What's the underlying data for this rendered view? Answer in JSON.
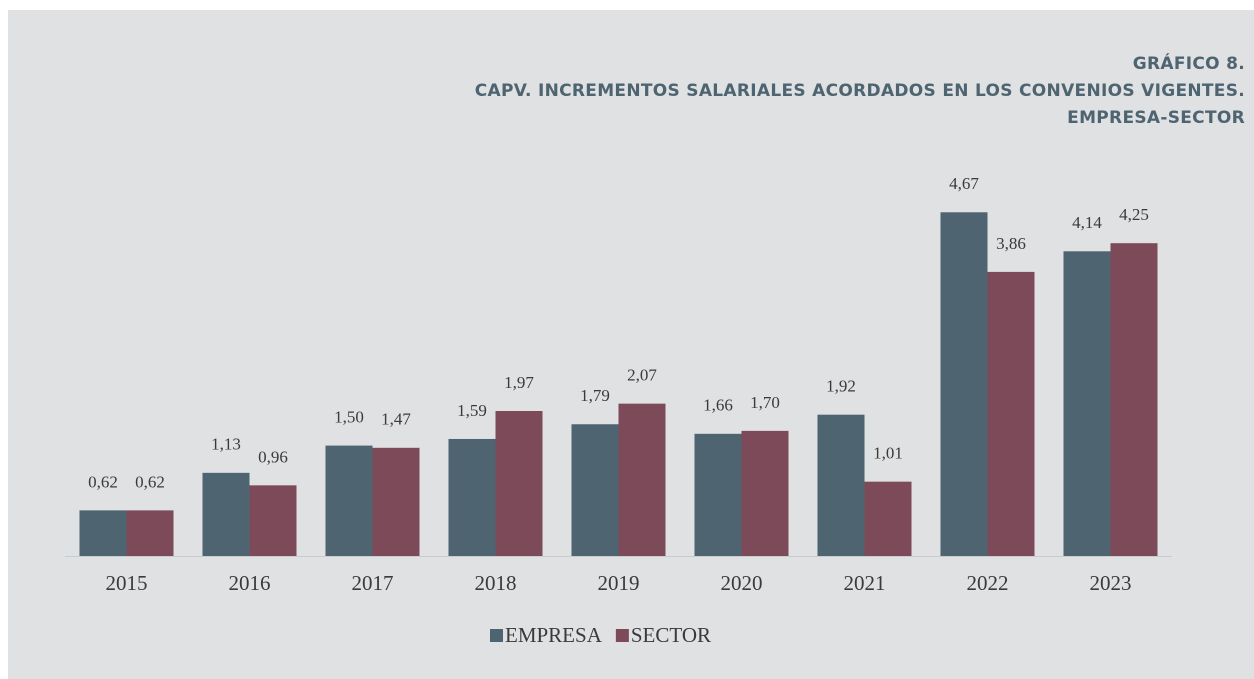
{
  "chart_data": {
    "type": "bar",
    "title": "GRÁFICO 8.",
    "subtitle": [
      "CAPV. INCREMENTOS SALARIALES ACORDADOS EN LOS CONVENIOS VIGENTES.",
      "EMPRESA-SECTOR"
    ],
    "categories": [
      "2015",
      "2016",
      "2017",
      "2018",
      "2019",
      "2020",
      "2021",
      "2022",
      "2023"
    ],
    "series": [
      {
        "name": "EMPRESA",
        "color": "#4e6470",
        "values": [
          0.62,
          1.13,
          1.5,
          1.59,
          1.79,
          1.66,
          1.92,
          4.67,
          4.14
        ],
        "value_labels": [
          "0,62",
          "1,13",
          "1,50",
          "1,59",
          "1,79",
          "1,66",
          "1,92",
          "4,67",
          "4,14"
        ]
      },
      {
        "name": "SECTOR",
        "color": "#7c4a58",
        "values": [
          0.62,
          0.96,
          1.47,
          1.97,
          2.07,
          1.7,
          1.01,
          3.86,
          4.25
        ],
        "value_labels": [
          "0,62",
          "0,96",
          "1,47",
          "1,97",
          "2,07",
          "1,70",
          "1,01",
          "3,86",
          "4,25"
        ]
      }
    ],
    "ylim": [
      0,
      5
    ]
  }
}
